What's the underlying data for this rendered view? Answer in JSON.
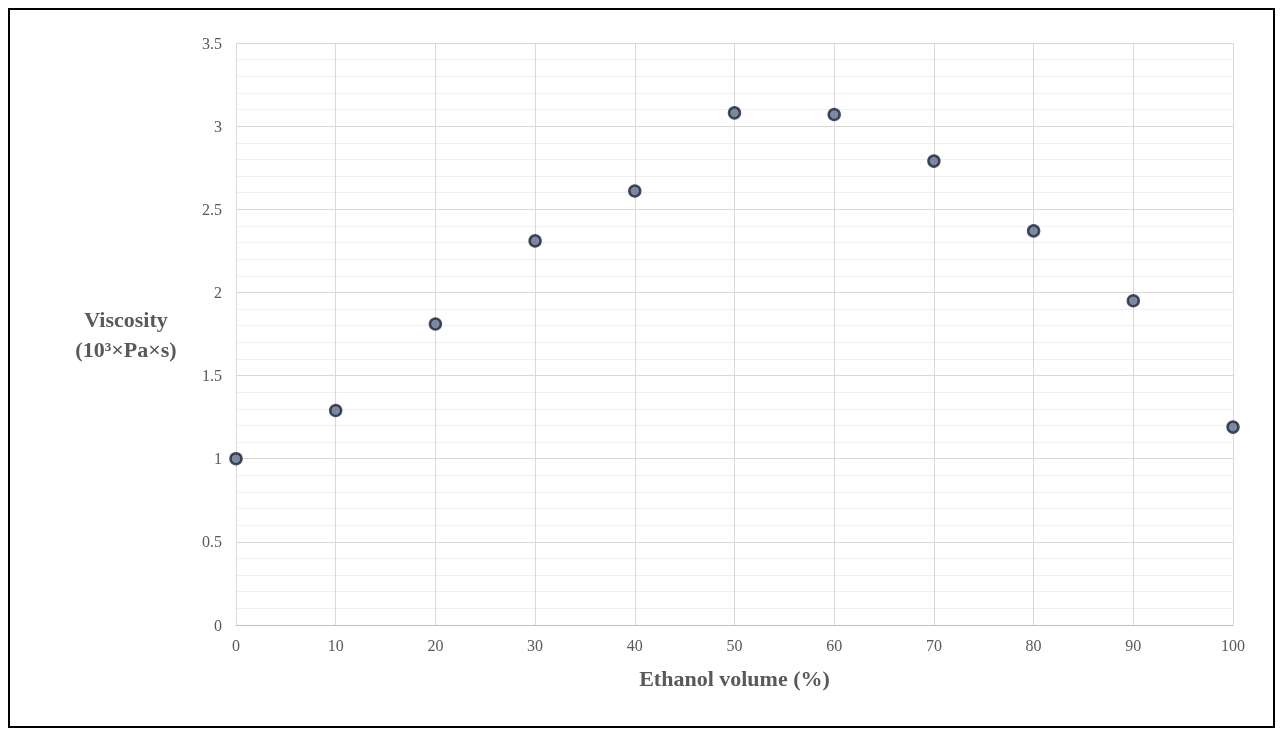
{
  "chart_data": {
    "type": "scatter",
    "xlabel": "Ethanol volume (%)",
    "ylabel": "Viscosity (10³×Pa×s)",
    "x": [
      0,
      10,
      20,
      30,
      40,
      50,
      60,
      70,
      80,
      90,
      100
    ],
    "series": [
      {
        "color": "#5b6e8c",
        "values": [
          1.0,
          1.29,
          1.81,
          2.31,
          2.61,
          3.08,
          3.07,
          2.79,
          2.37,
          1.95,
          1.19
        ]
      }
    ],
    "xlim": [
      0,
      100
    ],
    "xticks": [
      0,
      10,
      20,
      30,
      40,
      50,
      60,
      70,
      80,
      90,
      100
    ],
    "ylim": [
      0,
      3.5
    ],
    "yticks": [
      0,
      0.5,
      1,
      1.5,
      2,
      2.5,
      3,
      3.5
    ],
    "grid": true,
    "marker": "circle"
  }
}
